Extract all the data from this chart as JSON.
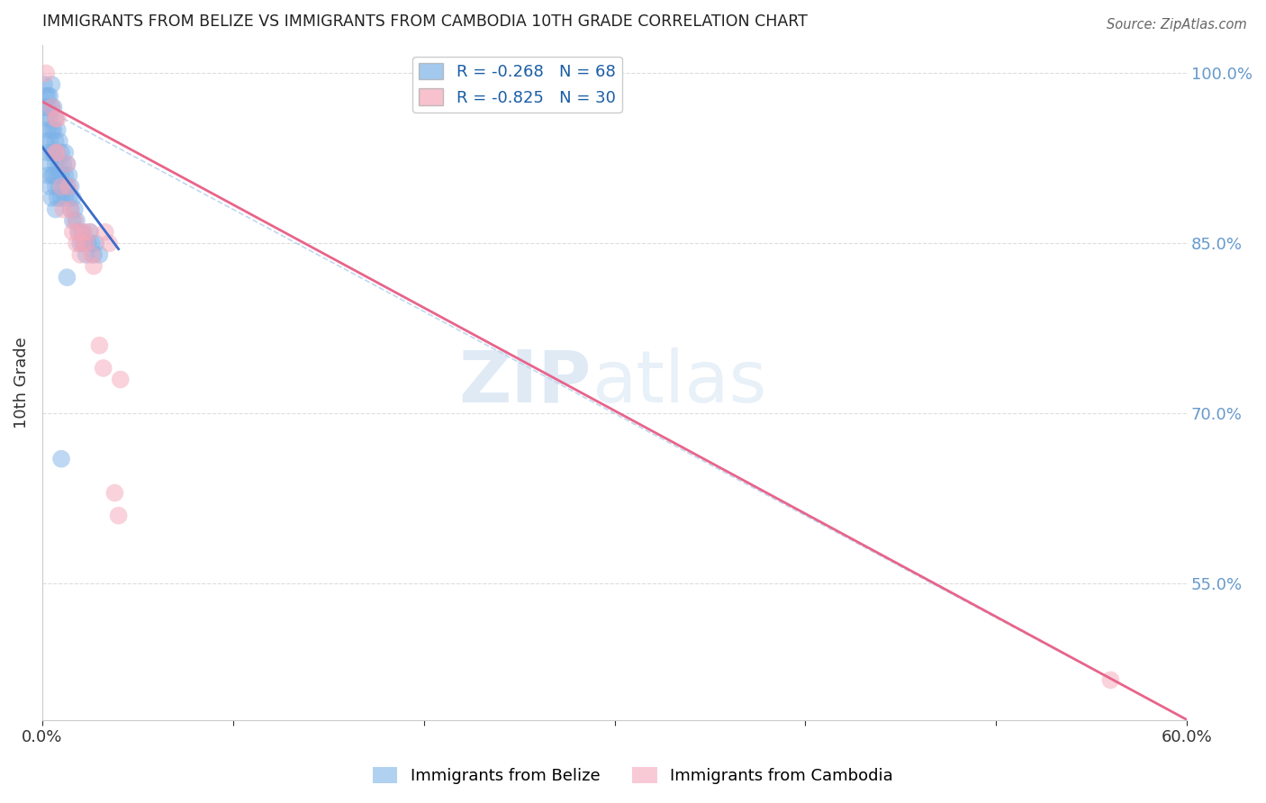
{
  "title": "IMMIGRANTS FROM BELIZE VS IMMIGRANTS FROM CAMBODIA 10TH GRADE CORRELATION CHART",
  "source": "Source: ZipAtlas.com",
  "ylabel": "10th Grade",
  "xlim": [
    0.0,
    0.6
  ],
  "ylim": [
    0.43,
    1.025
  ],
  "right_yticks": [
    1.0,
    0.85,
    0.7,
    0.55
  ],
  "right_ytick_labels": [
    "100.0%",
    "85.0%",
    "70.0%",
    "55.0%"
  ],
  "xticks": [
    0.0,
    0.1,
    0.2,
    0.3,
    0.4,
    0.5,
    0.6
  ],
  "xtick_labels": [
    "0.0%",
    "",
    "",
    "",
    "",
    "",
    "60.0%"
  ],
  "belize_R": -0.268,
  "belize_N": 68,
  "cambodia_R": -0.825,
  "cambodia_N": 30,
  "belize_color": "#7eb3e8",
  "cambodia_color": "#f4a7b9",
  "belize_line_color": "#3a6cc9",
  "cambodia_line_color": "#e8648a",
  "background_color": "#ffffff",
  "grid_color": "#dddddd",
  "right_axis_color": "#6699cc",
  "belize_scatter_x": [
    0.001,
    0.001,
    0.002,
    0.002,
    0.002,
    0.003,
    0.003,
    0.003,
    0.003,
    0.003,
    0.004,
    0.004,
    0.004,
    0.004,
    0.004,
    0.005,
    0.005,
    0.005,
    0.005,
    0.005,
    0.005,
    0.006,
    0.006,
    0.006,
    0.006,
    0.007,
    0.007,
    0.007,
    0.007,
    0.007,
    0.008,
    0.008,
    0.008,
    0.008,
    0.009,
    0.009,
    0.009,
    0.01,
    0.01,
    0.01,
    0.011,
    0.011,
    0.012,
    0.012,
    0.012,
    0.013,
    0.013,
    0.014,
    0.014,
    0.015,
    0.015,
    0.016,
    0.016,
    0.017,
    0.018,
    0.019,
    0.02,
    0.021,
    0.022,
    0.023,
    0.024,
    0.025,
    0.026,
    0.027,
    0.028,
    0.03,
    0.01,
    0.013
  ],
  "belize_scatter_y": [
    0.99,
    0.97,
    0.98,
    0.96,
    0.94,
    0.98,
    0.97,
    0.95,
    0.93,
    0.91,
    0.98,
    0.96,
    0.94,
    0.92,
    0.9,
    0.99,
    0.97,
    0.95,
    0.93,
    0.91,
    0.89,
    0.97,
    0.95,
    0.93,
    0.91,
    0.96,
    0.94,
    0.92,
    0.9,
    0.88,
    0.95,
    0.93,
    0.91,
    0.89,
    0.94,
    0.92,
    0.9,
    0.93,
    0.91,
    0.89,
    0.92,
    0.9,
    0.93,
    0.91,
    0.89,
    0.92,
    0.9,
    0.91,
    0.89,
    0.9,
    0.88,
    0.89,
    0.87,
    0.88,
    0.87,
    0.86,
    0.85,
    0.86,
    0.85,
    0.84,
    0.85,
    0.86,
    0.85,
    0.84,
    0.85,
    0.84,
    0.66,
    0.82
  ],
  "cambodia_scatter_x": [
    0.002,
    0.005,
    0.007,
    0.007,
    0.008,
    0.008,
    0.01,
    0.011,
    0.013,
    0.014,
    0.015,
    0.016,
    0.017,
    0.018,
    0.019,
    0.02,
    0.021,
    0.022,
    0.023,
    0.025,
    0.026,
    0.027,
    0.03,
    0.032,
    0.033,
    0.035,
    0.038,
    0.04,
    0.041,
    0.56
  ],
  "cambodia_scatter_y": [
    1.0,
    0.97,
    0.96,
    0.93,
    0.96,
    0.93,
    0.9,
    0.88,
    0.92,
    0.9,
    0.88,
    0.86,
    0.87,
    0.85,
    0.86,
    0.84,
    0.85,
    0.86,
    0.85,
    0.86,
    0.84,
    0.83,
    0.76,
    0.74,
    0.86,
    0.85,
    0.63,
    0.61,
    0.73,
    0.465
  ],
  "belize_line_x0": 0.0,
  "belize_line_y0": 0.935,
  "belize_line_x1": 0.04,
  "belize_line_y1": 0.845,
  "cambodia_line_x0": 0.0,
  "cambodia_line_y0": 0.975,
  "cambodia_line_x1": 0.6,
  "cambodia_line_y1": 0.43,
  "dashed_line_x0": 0.0,
  "dashed_line_y0": 0.97,
  "dashed_line_x1": 0.6,
  "dashed_line_y1": 0.43
}
